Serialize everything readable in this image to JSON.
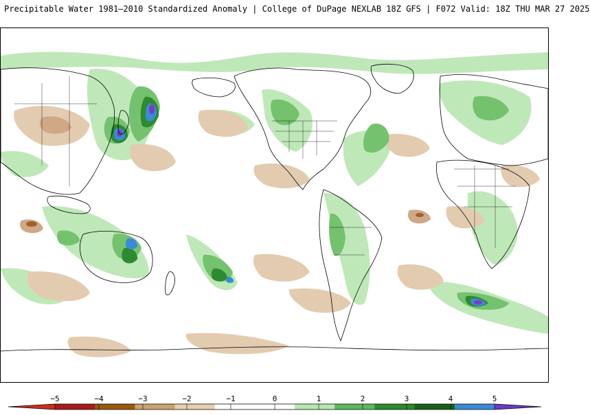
{
  "title": {
    "text": "Precipitable Water 1981–2010 Standardized Anomaly | College of DuPage NEXLAB  18Z GFS | F072 Valid: 18Z THU MAR 27 2025"
  },
  "colorbar": {
    "ticks": [
      "−5",
      "−4",
      "−3",
      "−2",
      "−1",
      "0",
      "1",
      "2",
      "3",
      "4",
      "5"
    ],
    "colors": [
      "#c8301e",
      "#a81c1c",
      "#9a5a0c",
      "#c8a270",
      "#e8cdb0",
      "#ffffff",
      "#ffffff",
      "#b8e6b0",
      "#5cb85c",
      "#2a8a2a",
      "#1a5e1a",
      "#3a8ad8",
      "#6a3ac8"
    ]
  },
  "map": {
    "shading": {
      "negative_light": "#e3cbb0",
      "negative_mid": "#cfa888",
      "negative_dark": "#a0622a",
      "positive_light": "#bfe8b8",
      "positive_mid": "#74c26e",
      "positive_dark": "#2e8a30",
      "positive_deep": "#1a5e1a",
      "positive_blue": "#3a8ad8",
      "positive_purple": "#7a3ac8"
    },
    "coastline_color": "#000000"
  }
}
